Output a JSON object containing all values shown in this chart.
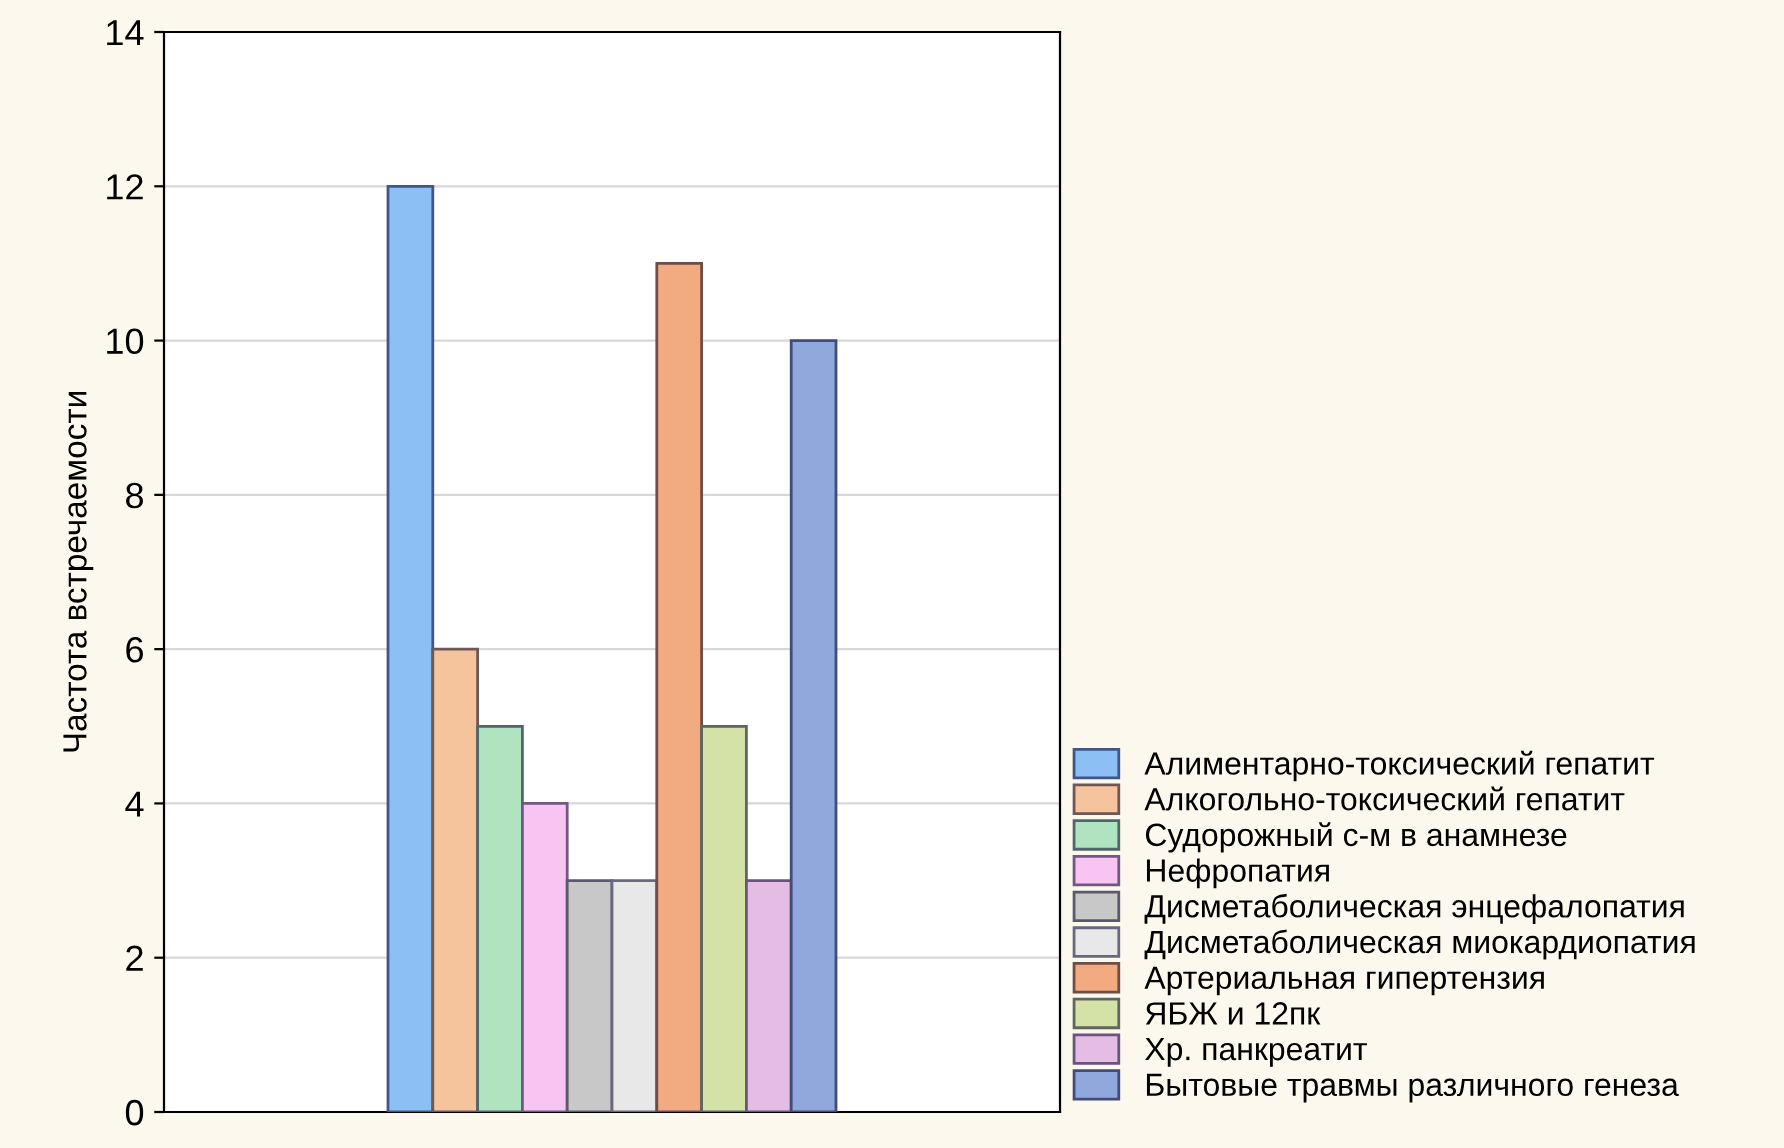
{
  "chart_data": {
    "type": "bar",
    "ylabel": "Частота встречаемости",
    "categories": [
      null
    ],
    "series": [
      {
        "name": "Алиментарно-токсический гепатит",
        "color": "#8cc0f5",
        "values": [
          12
        ]
      },
      {
        "name": "Алкогольно-токсический гепатит",
        "color": "#f5c49c",
        "values": [
          6
        ]
      },
      {
        "name": "Судорожный с-м в анамнезе",
        "color": "#b0e4c0",
        "values": [
          5
        ]
      },
      {
        "name": "Нефропатия",
        "color": "#f8c4f2",
        "values": [
          4
        ]
      },
      {
        "name": "Дисметаболическая энцефалопатия",
        "color": "#c8c8c8",
        "values": [
          3
        ]
      },
      {
        "name": "Дисметаболическая миокардиопатия",
        "color": "#e8e8e8",
        "values": [
          3
        ]
      },
      {
        "name": "Артериальная гипертензия",
        "color": "#f2ab80",
        "values": [
          11
        ]
      },
      {
        "name": "ЯБЖ и 12пк",
        "color": "#d4e2a8",
        "values": [
          5
        ]
      },
      {
        "name": "Хр. панкреатит",
        "color": "#e4bce4",
        "values": [
          3
        ]
      },
      {
        "name": "Бытовые травмы различного генеза",
        "color": "#90a8dc",
        "values": [
          10
        ]
      }
    ],
    "ylim": [
      0,
      14
    ],
    "yticks": [
      0,
      2,
      4,
      6,
      8,
      10,
      12,
      14
    ],
    "grid": "y",
    "legend": "bottom right",
    "tick_labels": "y"
  }
}
